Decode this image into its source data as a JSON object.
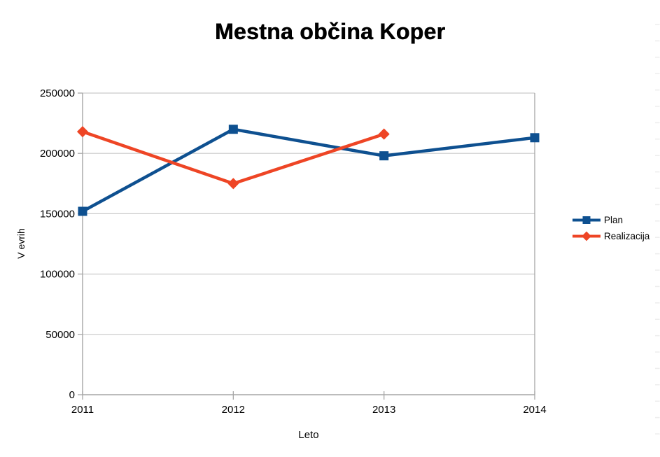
{
  "title": "Mestna občina Koper",
  "colors": {
    "plan": "#0E5090",
    "realizacija": "#EE4525",
    "grid": "#C9C9C9",
    "axis": "#A6A6A6",
    "text": "#000000",
    "background": "#FFFFFF",
    "row_artifact": "#EDEDED"
  },
  "chart_data": {
    "type": "line",
    "title": "Mestna občina Koper",
    "xlabel": "Leto",
    "ylabel": "V evrih",
    "categories": [
      "2011",
      "2012",
      "2013",
      "2014"
    ],
    "y_ticks": [
      0,
      50000,
      100000,
      150000,
      200000,
      250000
    ],
    "ylim": [
      0,
      250000
    ],
    "grid": "horizontal",
    "legend_position": "right",
    "series": [
      {
        "name": "Plan",
        "marker": "square",
        "color": "#0E5090",
        "values": [
          152000,
          220000,
          198000,
          213000
        ]
      },
      {
        "name": "Realizacija",
        "marker": "diamond",
        "color": "#EE4525",
        "values": [
          218000,
          175000,
          216000,
          null
        ]
      }
    ]
  }
}
